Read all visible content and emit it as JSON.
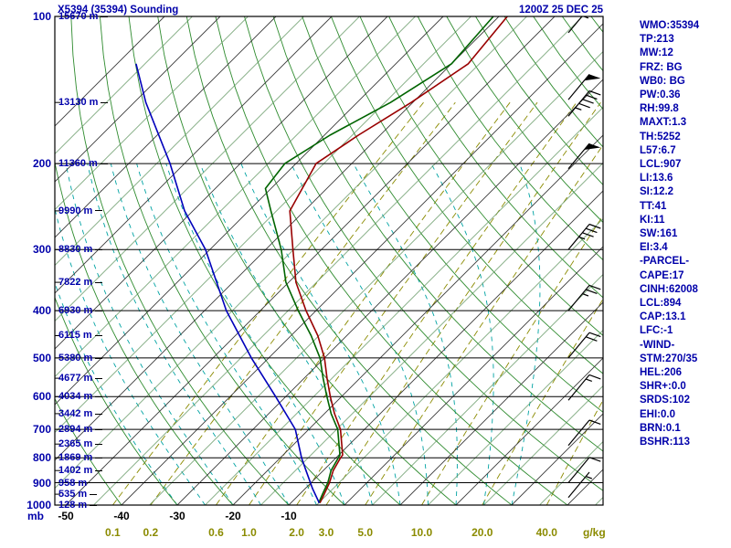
{
  "header": {
    "title": "X5394 (35394) Sounding",
    "datetime": "1200Z 25 DEC 25"
  },
  "colors": {
    "text_blue": "#0000AA",
    "temperature": "#990000",
    "dewpoint": "#006400",
    "parcel": "#0000BB",
    "isotherm_major": "#3a3a3a",
    "isotherm_minor": "#5f945f",
    "dry_adiabat": "#2e8b2e",
    "moist_adiabat": "#00A3A3",
    "mixing_ratio": "#8B8B00",
    "pressure_line": "#000000",
    "barb": "#000000"
  },
  "stats_panel": {
    "lines": [
      "WMO:35394",
      "TP:213",
      "MW:12",
      "FRZ: BG",
      "WB0: BG",
      "PW:0.36",
      "RH:99.8",
      "MAXT:1.3",
      "TH:5252",
      "L57:6.7",
      "LCL:907",
      "LI:13.6",
      "SI:12.2",
      "TT:41",
      "KI:11",
      "SW:161",
      "EI:3.4",
      "-PARCEL-",
      "CAPE:17",
      "CINH:62008",
      "LCL:894",
      "CAP:13.1",
      "LFC:-1",
      "-WIND-",
      "STM:270/35",
      "HEL:206",
      "SHR+:0.0",
      "SRDS:102",
      "EHI:0.0",
      "BRN:0.1",
      "BSHR:113"
    ]
  },
  "chart_data": {
    "type": "line",
    "subtype": "skewt-logp-sounding",
    "title": "X5394 (35394) Sounding",
    "valid_time": "1200Z 25 DEC 25",
    "y_axis": {
      "unit_label": "mb",
      "pressure_labels_mb": [
        100,
        200,
        300,
        400,
        500,
        600,
        700,
        800,
        900,
        1000
      ],
      "pressure_range_mb": [
        100,
        1000
      ],
      "scale": "log"
    },
    "x_axis": {
      "isotherm_labels_c": [
        -50,
        -40,
        -30,
        -20,
        -10
      ],
      "mixing_unit_label": "g/kg",
      "temp_range_c": [
        -50,
        50
      ]
    },
    "height_labels": [
      {
        "pressure_mb": 100,
        "label": "15670 m"
      },
      {
        "pressure_mb": 150,
        "label": "13130 m"
      },
      {
        "pressure_mb": 200,
        "label": "11360 m"
      },
      {
        "pressure_mb": 250,
        "label": "9990 m"
      },
      {
        "pressure_mb": 300,
        "label": "8830 m"
      },
      {
        "pressure_mb": 350,
        "label": "7822 m"
      },
      {
        "pressure_mb": 400,
        "label": "6930 m"
      },
      {
        "pressure_mb": 450,
        "label": "6115 m"
      },
      {
        "pressure_mb": 500,
        "label": "5380 m"
      },
      {
        "pressure_mb": 550,
        "label": "4677 m"
      },
      {
        "pressure_mb": 600,
        "label": "4034 m"
      },
      {
        "pressure_mb": 650,
        "label": "3442 m"
      },
      {
        "pressure_mb": 700,
        "label": "2894 m"
      },
      {
        "pressure_mb": 750,
        "label": "2365 m"
      },
      {
        "pressure_mb": 800,
        "label": "1869 m"
      },
      {
        "pressure_mb": 850,
        "label": "1402 m"
      },
      {
        "pressure_mb": 900,
        "label": "958 m"
      },
      {
        "pressure_mb": 950,
        "label": "535 m"
      },
      {
        "pressure_mb": 1000,
        "label": "128 m"
      }
    ],
    "grid": {
      "isotherms_c": {
        "min": -120,
        "max": 50,
        "step": 5
      },
      "dry_adiabats_theta_c": {
        "min": -40,
        "max": 200,
        "step": 10
      },
      "moist_adiabats_c": [
        -30,
        -25,
        -20,
        -15,
        -10,
        -5,
        0,
        5,
        10,
        15,
        20,
        25,
        30
      ],
      "mixing_ratio_lines_gkg": [
        0.1,
        0.2,
        0.6,
        1.0,
        2.0,
        3.0,
        5.0,
        10.0,
        20.0,
        40.0
      ]
    },
    "series": [
      {
        "name": "temperature",
        "color": "#990000",
        "points": [
          [
            990,
            -4.8
          ],
          [
            950,
            -5.6
          ],
          [
            900,
            -6.7
          ],
          [
            850,
            -8.2
          ],
          [
            800,
            -9.2
          ],
          [
            790,
            -9.3
          ],
          [
            700,
            -14.3
          ],
          [
            650,
            -18.2
          ],
          [
            600,
            -22.0
          ],
          [
            550,
            -25.9
          ],
          [
            500,
            -30.0
          ],
          [
            450,
            -35.2
          ],
          [
            400,
            -41.8
          ],
          [
            350,
            -48.7
          ],
          [
            300,
            -55.1
          ],
          [
            250,
            -62.6
          ],
          [
            200,
            -66.4
          ],
          [
            175,
            -63.9
          ],
          [
            150,
            -60.3
          ],
          [
            125,
            -57.0
          ],
          [
            100,
            -58.5
          ]
        ]
      },
      {
        "name": "dewpoint",
        "color": "#006400",
        "points": [
          [
            990,
            -5.0
          ],
          [
            950,
            -5.9
          ],
          [
            900,
            -7.0
          ],
          [
            850,
            -8.6
          ],
          [
            800,
            -9.6
          ],
          [
            790,
            -9.8
          ],
          [
            700,
            -14.8
          ],
          [
            650,
            -18.8
          ],
          [
            600,
            -22.6
          ],
          [
            550,
            -26.6
          ],
          [
            500,
            -30.8
          ],
          [
            450,
            -36.4
          ],
          [
            400,
            -43.2
          ],
          [
            350,
            -50.5
          ],
          [
            300,
            -57.2
          ],
          [
            250,
            -66.0
          ],
          [
            225,
            -71.0
          ],
          [
            200,
            -72.0
          ],
          [
            175,
            -69.0
          ],
          [
            150,
            -64.0
          ],
          [
            125,
            -60.0
          ],
          [
            100,
            -61.0
          ]
        ]
      },
      {
        "name": "parcel",
        "color": "#0000BB",
        "points": [
          [
            990,
            -4.9
          ],
          [
            925,
            -8.7
          ],
          [
            850,
            -13.1
          ],
          [
            800,
            -16.2
          ],
          [
            700,
            -22.4
          ],
          [
            600,
            -31.8
          ],
          [
            500,
            -43.1
          ],
          [
            400,
            -56.1
          ],
          [
            300,
            -70.8
          ],
          [
            250,
            -81.5
          ],
          [
            200,
            -92.6
          ],
          [
            150,
            -107.9
          ],
          [
            125,
            -116.6
          ]
        ]
      }
    ],
    "wind_barbs": [
      {
        "pressure_mb": 100,
        "speed_kt": 65
      },
      {
        "pressure_mb": 108,
        "speed_kt": 55
      },
      {
        "pressure_mb": 148,
        "speed_kt": 50
      },
      {
        "pressure_mb": 160,
        "speed_kt": 45
      },
      {
        "pressure_mb": 205,
        "speed_kt": 50
      },
      {
        "pressure_mb": 300,
        "speed_kt": 35
      },
      {
        "pressure_mb": 400,
        "speed_kt": 25
      },
      {
        "pressure_mb": 500,
        "speed_kt": 20
      },
      {
        "pressure_mb": 610,
        "speed_kt": 15
      },
      {
        "pressure_mb": 755,
        "speed_kt": 10
      },
      {
        "pressure_mb": 900,
        "speed_kt": 10
      },
      {
        "pressure_mb": 965,
        "speed_kt": 5
      }
    ]
  }
}
